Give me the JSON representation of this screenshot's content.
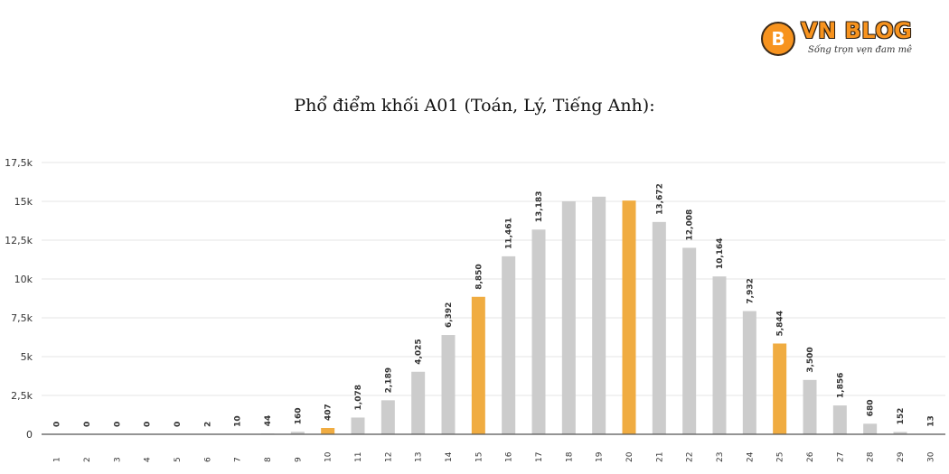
{
  "logo": {
    "badge_letter": "B",
    "main": "VN BLOG",
    "tagline": "Sống trọn vẹn đam mê"
  },
  "chart_data": {
    "type": "bar",
    "title": "Phổ điểm khối A01 (Toán, Lý, Tiếng Anh):",
    "xlabel": "",
    "ylabel": "",
    "ylim": [
      0,
      17500
    ],
    "grid": true,
    "y_ticks": [
      0,
      2500,
      5000,
      7500,
      10000,
      12500,
      15000,
      17500
    ],
    "y_tick_labels": [
      "0",
      "2,5k",
      "5k",
      "7,5k",
      "10k",
      "12,5k",
      "15k",
      "17,5k"
    ],
    "categories": [
      "1",
      "2",
      "3",
      "4",
      "5",
      "6",
      "7",
      "8",
      "9",
      "10",
      "11",
      "12",
      "13",
      "14",
      "15",
      "16",
      "17",
      "18",
      "19",
      "20",
      "21",
      "22",
      "23",
      "24",
      "25",
      "26",
      "27",
      "28",
      "29",
      "30"
    ],
    "values": [
      0,
      0,
      0,
      0,
      0,
      2,
      10,
      44,
      160,
      407,
      1078,
      2189,
      4025,
      6392,
      8850,
      11461,
      13183,
      15000,
      15300,
      15050,
      13672,
      12008,
      10164,
      7932,
      5844,
      3500,
      1856,
      680,
      152,
      13
    ],
    "data_labels": [
      "0",
      "0",
      "0",
      "0",
      "0",
      "2",
      "10",
      "44",
      "160",
      "407",
      "1,078",
      "2,189",
      "4,025",
      "6,392",
      "8,850",
      "11,461",
      "13,183",
      "",
      "",
      "",
      "13,672",
      "12,008",
      "10,164",
      "7,932",
      "5,844",
      "3,500",
      "1,856",
      "680",
      "152",
      "13"
    ],
    "highlighted_categories": [
      "10",
      "15",
      "20",
      "25"
    ],
    "colors": {
      "bar": "#cccccc",
      "highlight": "#f0ac41",
      "grid": "#e6e6e6",
      "axis": "#555555",
      "label": "#333333"
    }
  }
}
